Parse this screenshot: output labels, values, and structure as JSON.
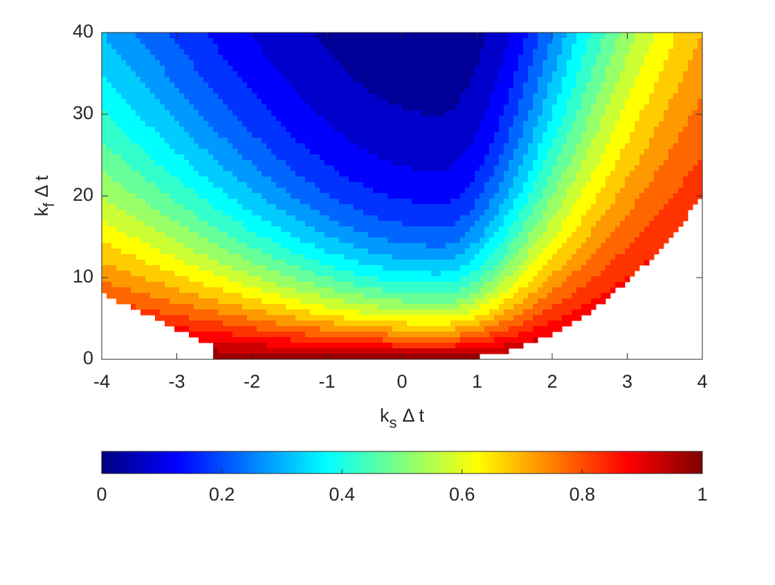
{
  "chart_data": {
    "type": "contour",
    "xlabel": [
      "k",
      "s",
      "Δ t"
    ],
    "ylabel": [
      "k",
      "f",
      "Δ t"
    ],
    "xlim": [
      -4,
      4
    ],
    "xticks": [
      -4,
      -3,
      -2,
      -1,
      0,
      1,
      2,
      3,
      4
    ],
    "ylim": [
      0,
      40
    ],
    "yticks": [
      0,
      10,
      20,
      30,
      40
    ],
    "levels": [
      0,
      0.05,
      0.1,
      0.15,
      0.2,
      0.25,
      0.3,
      0.35,
      0.4,
      0.45,
      0.5,
      0.55,
      0.6,
      0.65,
      0.7,
      0.75,
      0.8,
      0.85,
      0.9,
      0.95,
      1
    ],
    "colormap": "jet",
    "clim": [
      0,
      1
    ],
    "cticks": [
      0,
      0.2,
      0.4,
      0.6,
      0.8,
      1
    ]
  }
}
